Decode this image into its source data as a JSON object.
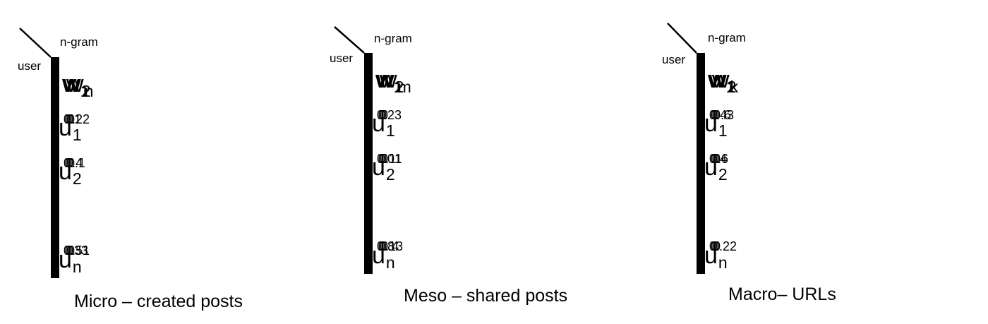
{
  "axis_labels": {
    "column_axis": "n-gram",
    "row_axis": "user"
  },
  "matrices": [
    {
      "caption": "Micro – created posts",
      "columns": [
        {
          "base": "w",
          "sub": "1"
        },
        {
          "base": "w",
          "sub": "2"
        },
        {
          "base": "",
          "sub": ""
        },
        {
          "base": "w",
          "sub": "n"
        }
      ],
      "rows": [
        {
          "base": "u",
          "sub": "1",
          "values": [
            "0.1",
            "0.22",
            "0",
            "0"
          ]
        },
        {
          "base": "u",
          "sub": "2",
          "values": [
            "0",
            "0.4",
            "0",
            "0.1"
          ]
        },
        {
          "base": "",
          "sub": "",
          "values": [
            "",
            "",
            "",
            ""
          ]
        },
        {
          "base": "u",
          "sub": "n",
          "values": [
            "0.33",
            "0.51",
            "0",
            "0"
          ]
        }
      ]
    },
    {
      "caption": "Meso – shared posts",
      "columns": [
        {
          "base": "w",
          "sub": "1"
        },
        {
          "base": "w",
          "sub": "2"
        },
        {
          "base": "",
          "sub": ""
        },
        {
          "base": "w",
          "sub": "m"
        }
      ],
      "rows": [
        {
          "base": "u",
          "sub": "1",
          "values": [
            "0.23",
            "0",
            "0",
            "0"
          ]
        },
        {
          "base": "u",
          "sub": "2",
          "values": [
            "0.01",
            "0.11",
            "0",
            "0"
          ]
        },
        {
          "base": "",
          "sub": "",
          "values": [
            "",
            "",
            "",
            ""
          ]
        },
        {
          "base": "u",
          "sub": "n",
          "values": [
            "0.8",
            "0.13",
            "0",
            "0.4"
          ]
        }
      ]
    },
    {
      "caption": "Macro– URLs",
      "columns": [
        {
          "base": "w",
          "sub": "1"
        },
        {
          "base": "w",
          "sub": "2"
        },
        {
          "base": "",
          "sub": ""
        },
        {
          "base": "w",
          "sub": "k"
        }
      ],
      "rows": [
        {
          "base": "u",
          "sub": "1",
          "values": [
            "0.43",
            "0",
            "0",
            "0.6"
          ]
        },
        {
          "base": "u",
          "sub": "2",
          "values": [
            "0.4",
            "0.6",
            "0",
            "0"
          ]
        },
        {
          "base": "",
          "sub": "",
          "values": [
            "",
            "",
            "",
            ""
          ]
        },
        {
          "base": "u",
          "sub": "n",
          "values": [
            "0",
            "0",
            "0.22",
            "0"
          ]
        }
      ]
    }
  ]
}
